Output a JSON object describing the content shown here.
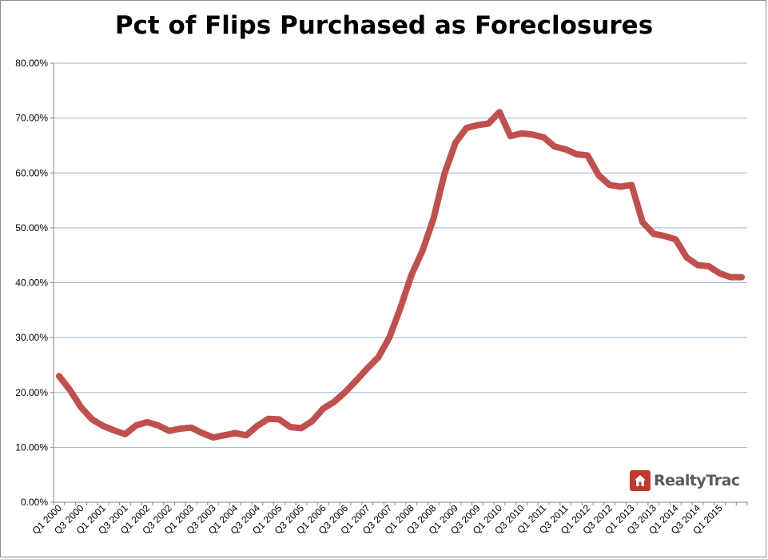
{
  "chart_data": {
    "type": "line",
    "title": "Pct of Flips Purchased as Foreclosures",
    "xlabel": "",
    "ylabel": "",
    "ylim": [
      0,
      80
    ],
    "yticks": [
      "0.00%",
      "10.00%",
      "20.00%",
      "30.00%",
      "40.00%",
      "50.00%",
      "60.00%",
      "70.00%",
      "80.00%"
    ],
    "xtick_labels": [
      "Q1 2000",
      "Q3 2000",
      "Q1 2001",
      "Q3 2001",
      "Q1 2002",
      "Q3 2002",
      "Q1 2003",
      "Q3 2003",
      "Q1 2004",
      "Q3 2004",
      "Q1 2005",
      "Q3 2005",
      "Q1 2006",
      "Q3 2006",
      "Q1 2007",
      "Q3 2007",
      "Q1 2008",
      "Q3 2008",
      "Q1 2009",
      "Q3 2009",
      "Q1 2010",
      "Q3 2010",
      "Q1 2011",
      "Q3 2011",
      "Q1 2012",
      "Q3 2012",
      "Q1 2013",
      "Q3 2013",
      "Q1 2014",
      "Q3 2014",
      "Q1 2015"
    ],
    "grid": true,
    "line_color": "#c0504d",
    "categories": [
      "Q1 2000",
      "Q2 2000",
      "Q3 2000",
      "Q4 2000",
      "Q1 2001",
      "Q2 2001",
      "Q3 2001",
      "Q4 2001",
      "Q1 2002",
      "Q2 2002",
      "Q3 2002",
      "Q4 2002",
      "Q1 2003",
      "Q2 2003",
      "Q3 2003",
      "Q4 2003",
      "Q1 2004",
      "Q2 2004",
      "Q3 2004",
      "Q4 2004",
      "Q1 2005",
      "Q2 2005",
      "Q3 2005",
      "Q4 2005",
      "Q1 2006",
      "Q2 2006",
      "Q3 2006",
      "Q4 2006",
      "Q1 2007",
      "Q2 2007",
      "Q3 2007",
      "Q4 2007",
      "Q1 2008",
      "Q2 2008",
      "Q3 2008",
      "Q4 2008",
      "Q1 2009",
      "Q2 2009",
      "Q3 2009",
      "Q4 2009",
      "Q1 2010",
      "Q2 2010",
      "Q3 2010",
      "Q4 2010",
      "Q1 2011",
      "Q2 2011",
      "Q3 2011",
      "Q4 2011",
      "Q1 2012",
      "Q2 2012",
      "Q3 2012",
      "Q4 2012",
      "Q1 2013",
      "Q2 2013",
      "Q3 2013",
      "Q4 2013",
      "Q1 2014",
      "Q2 2014",
      "Q3 2014",
      "Q4 2014",
      "Q1 2015",
      "Q2 2015",
      "Q3 2015"
    ],
    "values": [
      23.0,
      20.4,
      17.3,
      15.1,
      13.9,
      13.1,
      12.4,
      14.0,
      14.6,
      14.0,
      13.0,
      13.4,
      13.6,
      12.6,
      11.8,
      12.2,
      12.6,
      12.2,
      13.9,
      15.2,
      15.1,
      13.7,
      13.5,
      14.8,
      17.1,
      18.3,
      20.1,
      22.2,
      24.4,
      26.4,
      30.0,
      35.4,
      41.4,
      45.8,
      51.6,
      59.8,
      65.5,
      68.2,
      68.7,
      69.0,
      71.1,
      66.7,
      67.2,
      67.0,
      66.5,
      64.8,
      64.3,
      63.4,
      63.2,
      59.6,
      57.8,
      57.5,
      57.8,
      51.0,
      48.9,
      48.5,
      47.9,
      44.6,
      43.2,
      43.0,
      41.7,
      41.0,
      41.0
    ]
  },
  "brand": {
    "name_part1": "Realty",
    "name_part2": "Trac",
    "accent": "#c0392b"
  }
}
